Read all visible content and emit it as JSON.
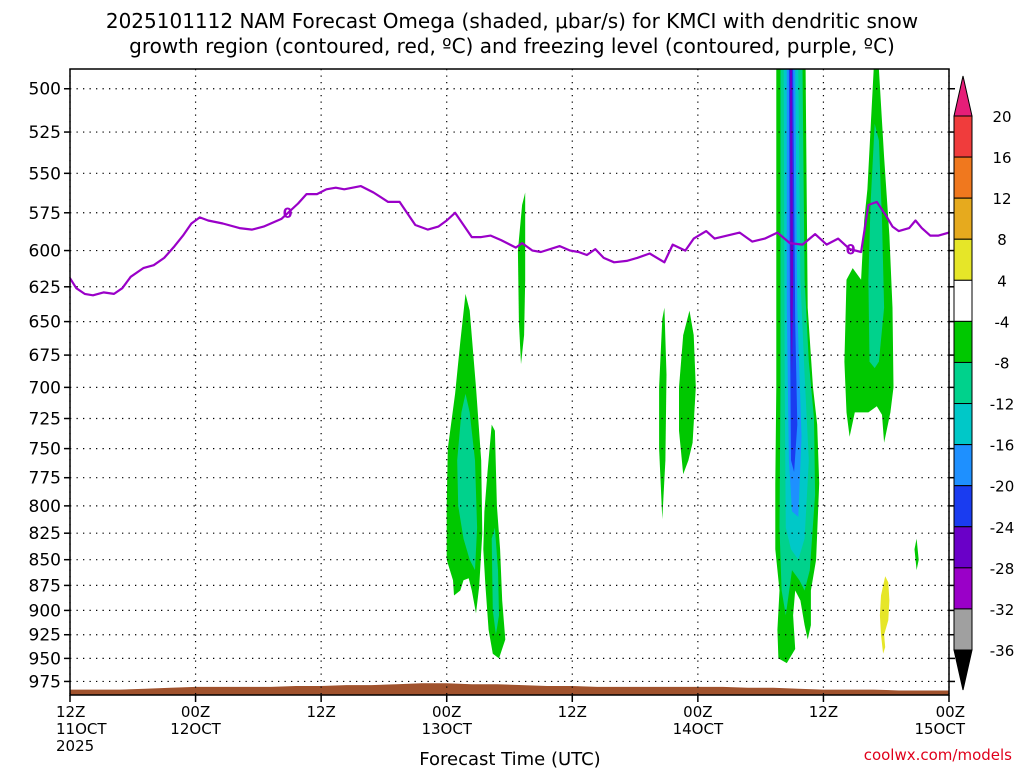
{
  "chart_data": {
    "type": "heatmap",
    "title_lines": [
      "2025101112 NAM Forecast Omega (shaded, μbar/s) for KMCI with dendritic snow",
      "growth region (contoured, red, ºC) and freezing level (contoured, purple, ºC)"
    ],
    "xlabel": "Forecast Time (UTC)",
    "credit": "coolwx.com/models",
    "x_ticks": [
      {
        "hour": 0,
        "line1": "12Z",
        "line2": "11OCT",
        "line3": "2025"
      },
      {
        "hour": 12,
        "line1": "00Z",
        "line2": "12OCT",
        "line3": ""
      },
      {
        "hour": 24,
        "line1": "12Z",
        "line2": "",
        "line3": ""
      },
      {
        "hour": 36,
        "line1": "00Z",
        "line2": "13OCT",
        "line3": ""
      },
      {
        "hour": 48,
        "line1": "12Z",
        "line2": "",
        "line3": ""
      },
      {
        "hour": 60,
        "line1": "00Z",
        "line2": "14OCT",
        "line3": ""
      },
      {
        "hour": 72,
        "line1": "12Z",
        "line2": "",
        "line3": ""
      },
      {
        "hour": 84,
        "line1": "00Z",
        "line2": "15OCT",
        "line3": ""
      }
    ],
    "x_range_hours": [
      0,
      84
    ],
    "y_axis": {
      "unit": "hPa",
      "range": [
        489,
        990
      ],
      "scale": "log",
      "ticks": [
        500,
        525,
        550,
        575,
        600,
        625,
        650,
        675,
        700,
        725,
        750,
        775,
        800,
        825,
        850,
        875,
        900,
        925,
        950,
        975
      ]
    },
    "grid": "dotted",
    "colorbar": {
      "levels": [
        "-36",
        "-32",
        "-28",
        "-24",
        "-20",
        "-16",
        "-12",
        "-8",
        "-4",
        "4",
        "8",
        "12",
        "16",
        "20"
      ],
      "colors": [
        "#000000",
        "#a0a0a0",
        "#9a00c8",
        "#6a00c8",
        "#1a3cf0",
        "#1e90ff",
        "#00c8c8",
        "#00d28c",
        "#00c800",
        "#ffffff",
        "#e6e628",
        "#e6aa1e",
        "#f0781e",
        "#f03c3c",
        "#e61e78"
      ]
    },
    "freezing_level": {
      "label": "0",
      "color": "#9a00c8",
      "x": [
        0,
        0.6,
        1.4,
        2.2,
        3.2,
        4.2,
        5,
        5.8,
        7,
        8,
        9,
        10,
        10.8,
        11.6,
        12.4,
        13.2,
        14.6,
        16.2,
        17.4,
        18.5,
        20.2,
        21.8,
        22.6,
        23.6,
        24.5,
        25.4,
        26.2,
        27.8,
        29,
        30.4,
        31.5,
        33,
        34.2,
        35.2,
        36,
        36.8,
        37.6,
        38.4,
        39.3,
        40.2,
        41.2,
        42.6,
        43.2,
        44.2,
        45,
        46.8,
        47.8,
        48.6,
        49.4,
        50.2,
        51,
        52,
        53.2,
        54.2,
        55.4,
        56.8,
        57.6,
        58.8,
        59.6,
        60.8,
        61.6,
        62.8,
        64,
        65.2,
        66.4,
        67.6,
        68.8,
        70,
        71.2,
        72.3,
        73.4,
        74.5,
        75.6,
        76.3,
        77.1,
        78,
        78.6,
        79.2,
        80.2,
        80.8,
        81.4,
        82.2,
        83,
        84
      ],
      "y": [
        619,
        626,
        630,
        631,
        629,
        630,
        626,
        618,
        612,
        610,
        605,
        597,
        590,
        582,
        578,
        580,
        582,
        585,
        586,
        584,
        579,
        569,
        563,
        563,
        560,
        559,
        560,
        558,
        562,
        568,
        568,
        583,
        586,
        584,
        580,
        575,
        583,
        591,
        591,
        590,
        593,
        598,
        595,
        600,
        601,
        597,
        600,
        601,
        603,
        599,
        605,
        608,
        607,
        605,
        602,
        608,
        596,
        600,
        592,
        587,
        592,
        590,
        588,
        594,
        592,
        588,
        595,
        596,
        589,
        596,
        592,
        599,
        601,
        570,
        568,
        577,
        584,
        587,
        585,
        580,
        585,
        590,
        590,
        588
      ],
      "pressure_of_zero_label": 563,
      "hours_of_zero_labels": [
        20.8,
        74.6
      ]
    },
    "terrain_top_hPa": [
      984,
      984,
      984,
      983,
      982,
      981,
      981,
      981,
      981,
      980,
      980,
      979,
      979,
      978,
      977,
      977,
      978,
      978,
      979,
      980,
      980,
      981,
      981,
      981,
      981,
      981,
      981,
      982,
      982,
      983,
      984,
      984,
      984,
      985,
      985,
      985
    ],
    "terrain_color": "#a0522d",
    "omega_regions": [
      {
        "level": -4,
        "color": "#00c800",
        "points": [
          [
            36.1,
            750
          ],
          [
            36.8,
            705
          ],
          [
            37.3,
            665
          ],
          [
            37.8,
            630
          ],
          [
            38.2,
            642
          ],
          [
            38.8,
            700
          ],
          [
            39.3,
            760
          ],
          [
            39.4,
            825
          ],
          [
            39.1,
            876
          ],
          [
            38.8,
            903
          ],
          [
            38.4,
            880
          ],
          [
            38.1,
            868
          ],
          [
            37.6,
            870
          ],
          [
            37.3,
            880
          ],
          [
            36.7,
            885
          ],
          [
            36.6,
            870
          ],
          [
            36.0,
            850
          ],
          [
            36.0,
            800
          ]
        ]
      },
      {
        "level": -8,
        "color": "#00d28c",
        "points": [
          [
            37.0,
            760
          ],
          [
            37.4,
            720
          ],
          [
            37.8,
            705
          ],
          [
            38.2,
            720
          ],
          [
            38.7,
            760
          ],
          [
            38.9,
            820
          ],
          [
            38.7,
            860
          ],
          [
            38.2,
            850
          ],
          [
            37.6,
            830
          ],
          [
            37.1,
            800
          ]
        ]
      },
      {
        "level": -4,
        "color": "#00c800",
        "points": [
          [
            39.6,
            805
          ],
          [
            39.9,
            770
          ],
          [
            40.3,
            730
          ],
          [
            40.6,
            735
          ],
          [
            40.8,
            800
          ],
          [
            41.1,
            840
          ],
          [
            41.3,
            890
          ],
          [
            41.6,
            930
          ],
          [
            41.0,
            950
          ],
          [
            40.4,
            945
          ],
          [
            40.0,
            920
          ],
          [
            39.7,
            875
          ],
          [
            39.5,
            840
          ]
        ]
      },
      {
        "level": -8,
        "color": "#00d28c",
        "points": [
          [
            40.3,
            830
          ],
          [
            40.6,
            820
          ],
          [
            40.9,
            860
          ],
          [
            41.0,
            905
          ],
          [
            40.7,
            925
          ],
          [
            40.4,
            900
          ]
        ]
      },
      {
        "level": -4,
        "color": "#00c800",
        "points": [
          [
            42.8,
            600
          ],
          [
            43.2,
            570
          ],
          [
            43.5,
            562
          ],
          [
            43.5,
            620
          ],
          [
            43.4,
            660
          ],
          [
            43.1,
            682
          ],
          [
            42.9,
            650
          ]
        ]
      },
      {
        "level": -4,
        "color": "#00c800",
        "points": [
          [
            56.3,
            700
          ],
          [
            56.6,
            648
          ],
          [
            56.8,
            640
          ],
          [
            57.0,
            690
          ],
          [
            56.9,
            760
          ],
          [
            56.6,
            812
          ],
          [
            56.3,
            750
          ]
        ]
      },
      {
        "level": -4,
        "color": "#00c800",
        "points": [
          [
            58.2,
            700
          ],
          [
            58.6,
            660
          ],
          [
            59.2,
            642
          ],
          [
            59.6,
            660
          ],
          [
            59.8,
            700
          ],
          [
            59.5,
            745
          ],
          [
            59.1,
            760
          ],
          [
            58.6,
            772
          ],
          [
            58.2,
            735
          ]
        ]
      },
      {
        "level": -4,
        "color": "#00c800",
        "points": [
          [
            67.5,
            489
          ],
          [
            70.3,
            489
          ],
          [
            70.5,
            640
          ],
          [
            71.0,
            700
          ],
          [
            71.4,
            730
          ],
          [
            71.6,
            780
          ],
          [
            71.3,
            850
          ],
          [
            70.8,
            880
          ],
          [
            70.8,
            915
          ],
          [
            70.5,
            930
          ],
          [
            70.2,
            915
          ],
          [
            69.8,
            890
          ],
          [
            69.3,
            880
          ],
          [
            69.1,
            905
          ],
          [
            69.3,
            940
          ],
          [
            68.5,
            955
          ],
          [
            67.7,
            950
          ],
          [
            67.6,
            920
          ],
          [
            67.8,
            880
          ],
          [
            67.4,
            840
          ],
          [
            67.4,
            780
          ],
          [
            67.5,
            700
          ]
        ]
      },
      {
        "level": -8,
        "color": "#00d28c",
        "points": [
          [
            67.9,
            489
          ],
          [
            70.0,
            489
          ],
          [
            70.2,
            620
          ],
          [
            70.6,
            680
          ],
          [
            71.1,
            725
          ],
          [
            71.2,
            790
          ],
          [
            70.7,
            860
          ],
          [
            70.2,
            880
          ],
          [
            69.7,
            870
          ],
          [
            69.0,
            860
          ],
          [
            68.4,
            905
          ],
          [
            68.0,
            880
          ],
          [
            67.8,
            820
          ],
          [
            67.9,
            700
          ]
        ]
      },
      {
        "level": -12,
        "color": "#00c8c8",
        "points": [
          [
            68.2,
            489
          ],
          [
            69.6,
            489
          ],
          [
            69.8,
            620
          ],
          [
            70.2,
            690
          ],
          [
            70.6,
            760
          ],
          [
            70.2,
            830
          ],
          [
            69.6,
            850
          ],
          [
            68.9,
            840
          ],
          [
            68.4,
            820
          ],
          [
            68.3,
            700
          ]
        ]
      },
      {
        "level": -16,
        "color": "#1e90ff",
        "points": [
          [
            68.5,
            489
          ],
          [
            69.3,
            489
          ],
          [
            69.5,
            640
          ],
          [
            69.9,
            740
          ],
          [
            69.6,
            810
          ],
          [
            69.0,
            805
          ],
          [
            68.7,
            760
          ],
          [
            68.5,
            640
          ]
        ]
      },
      {
        "level": -20,
        "color": "#1a3cf0",
        "points": [
          [
            68.7,
            489
          ],
          [
            69.1,
            489
          ],
          [
            69.3,
            650
          ],
          [
            69.5,
            730
          ],
          [
            69.2,
            770
          ],
          [
            68.9,
            760
          ],
          [
            68.8,
            640
          ]
        ]
      },
      {
        "level": -24,
        "color": "#6a00c8",
        "points": [
          [
            68.8,
            489
          ],
          [
            69.0,
            489
          ],
          [
            69.1,
            620
          ],
          [
            69.0,
            690
          ],
          [
            68.85,
            640
          ]
        ]
      },
      {
        "level": -4,
        "color": "#00c800",
        "points": [
          [
            76.2,
            560
          ],
          [
            76.8,
            489
          ],
          [
            77.3,
            489
          ],
          [
            77.8,
            540
          ],
          [
            78.3,
            590
          ],
          [
            78.6,
            640
          ],
          [
            78.7,
            700
          ],
          [
            78.4,
            720
          ],
          [
            77.8,
            745
          ],
          [
            77.6,
            722
          ],
          [
            77.1,
            715
          ],
          [
            76.3,
            720
          ],
          [
            75.0,
            720
          ],
          [
            74.5,
            740
          ],
          [
            74.2,
            720
          ],
          [
            74.0,
            680
          ],
          [
            74.2,
            620
          ],
          [
            74.8,
            612
          ],
          [
            75.6,
            620
          ],
          [
            75.9,
            580
          ]
        ]
      },
      {
        "level": -8,
        "color": "#00d28c",
        "points": [
          [
            76.5,
            570
          ],
          [
            76.9,
            520
          ],
          [
            77.3,
            530
          ],
          [
            77.6,
            580
          ],
          [
            77.8,
            640
          ],
          [
            77.3,
            680
          ],
          [
            76.9,
            685
          ],
          [
            76.4,
            680
          ],
          [
            76.3,
            620
          ]
        ]
      },
      {
        "level": -4,
        "color": "#00c800",
        "points": [
          [
            80.7,
            840
          ],
          [
            80.9,
            830
          ],
          [
            81.1,
            850
          ],
          [
            80.9,
            860
          ]
        ]
      },
      {
        "level": 4,
        "color": "#e6e628",
        "points": [
          [
            77.5,
            885
          ],
          [
            77.9,
            866
          ],
          [
            78.2,
            872
          ],
          [
            78.3,
            890
          ],
          [
            78.2,
            910
          ],
          [
            77.8,
            925
          ],
          [
            77.9,
            938
          ],
          [
            77.7,
            945
          ],
          [
            77.5,
            925
          ],
          [
            77.4,
            905
          ]
        ]
      }
    ]
  }
}
